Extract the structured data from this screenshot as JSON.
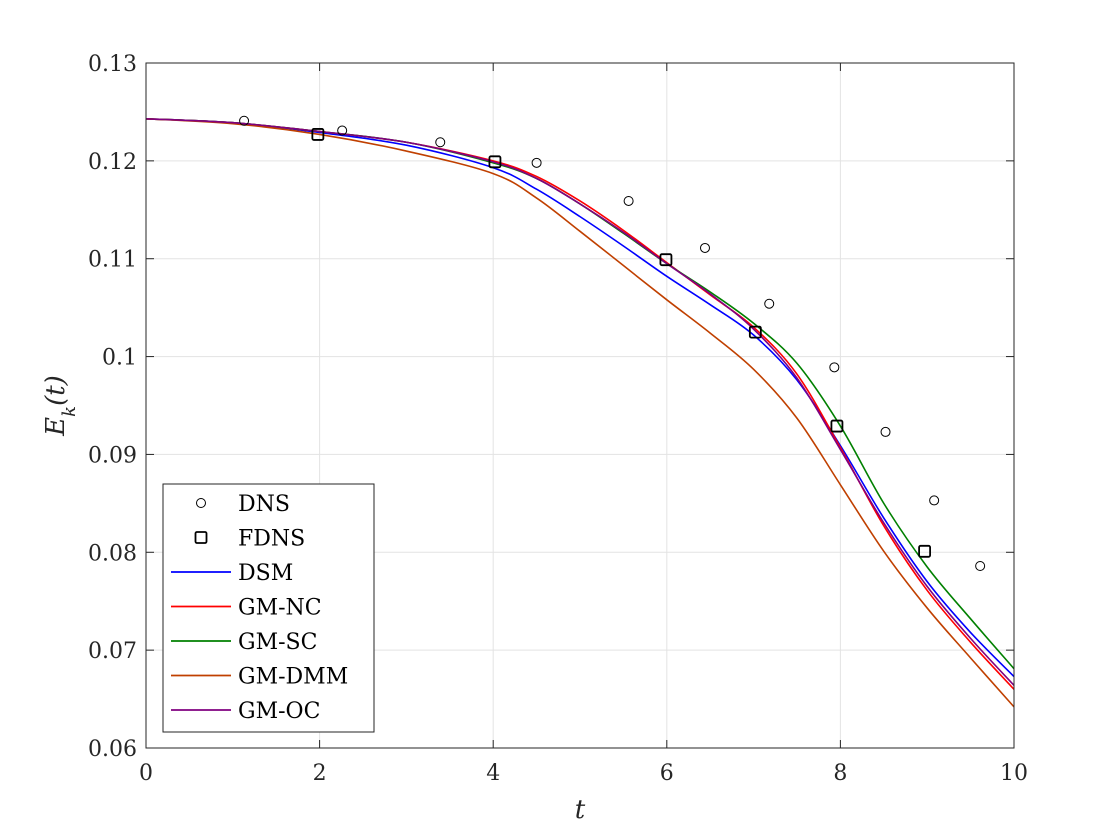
{
  "chart_data": {
    "type": "line",
    "xlabel": "t",
    "ylabel": "E_k(t)",
    "xlim": [
      0,
      10
    ],
    "ylim": [
      0.06,
      0.13
    ],
    "x_ticks": [
      0,
      2,
      4,
      6,
      8,
      10
    ],
    "y_ticks": [
      0.06,
      0.07,
      0.08,
      0.09,
      0.1,
      0.11,
      0.12,
      0.13
    ],
    "x_tick_labels": [
      "0",
      "2",
      "4",
      "6",
      "8",
      "10"
    ],
    "y_tick_labels": [
      "0.06",
      "0.07",
      "0.08",
      "0.09",
      "0.1",
      "0.11",
      "0.12",
      "0.13"
    ],
    "grid": true,
    "legend_position": "bottom-left",
    "series": [
      {
        "name": "DNS",
        "style": "circle-marker",
        "color": "#000000",
        "x": [
          1.13,
          2.26,
          3.39,
          4.5,
          5.56,
          6.44,
          7.18,
          7.93,
          8.52,
          9.08,
          9.61
        ],
        "y": [
          0.1241,
          0.1231,
          0.1219,
          0.1198,
          0.1159,
          0.1111,
          0.1054,
          0.0989,
          0.0923,
          0.0853,
          0.0786
        ]
      },
      {
        "name": "FDNS",
        "style": "square-marker",
        "color": "#000000",
        "x": [
          1.98,
          4.02,
          5.99,
          7.02,
          7.96,
          8.97
        ],
        "y": [
          0.1227,
          0.1199,
          0.1099,
          0.1025,
          0.0929,
          0.0801
        ]
      },
      {
        "name": "DSM",
        "style": "line",
        "color": "#0000ff",
        "x": [
          0,
          1,
          2,
          3,
          4,
          4.5,
          5,
          5.5,
          6,
          6.5,
          7,
          7.5,
          8,
          8.5,
          9,
          9.5,
          10
        ],
        "y": [
          0.1243,
          0.1239,
          0.1229,
          0.1216,
          0.1193,
          0.1171,
          0.1143,
          0.1113,
          0.1082,
          0.1053,
          0.1022,
          0.0976,
          0.0909,
          0.0835,
          0.077,
          0.0718,
          0.0673
        ]
      },
      {
        "name": "GM-NC",
        "style": "line",
        "color": "#ff0000",
        "x": [
          0,
          1,
          2,
          3,
          4,
          4.5,
          5,
          5.5,
          6,
          6.5,
          7,
          7.5,
          8,
          8.5,
          9,
          9.5,
          10
        ],
        "y": [
          0.1243,
          0.1239,
          0.123,
          0.1219,
          0.12,
          0.1184,
          0.1159,
          0.1129,
          0.1096,
          0.1063,
          0.103,
          0.0982,
          0.0907,
          0.0827,
          0.0761,
          0.0708,
          0.066
        ]
      },
      {
        "name": "GM-SC",
        "style": "line",
        "color": "#008000",
        "x": [
          0,
          1,
          2,
          3,
          4,
          4.5,
          5,
          5.5,
          6,
          6.5,
          7,
          7.5,
          8,
          8.5,
          9,
          9.5,
          10
        ],
        "y": [
          0.1243,
          0.1239,
          0.123,
          0.1219,
          0.1198,
          0.1182,
          0.1156,
          0.1126,
          0.1095,
          0.1066,
          0.1034,
          0.0993,
          0.0929,
          0.085,
          0.0785,
          0.0732,
          0.0681
        ]
      },
      {
        "name": "GM-DMM",
        "style": "line",
        "color": "#c04000",
        "x": [
          0,
          1,
          2,
          3,
          4,
          4.5,
          5,
          5.5,
          6,
          6.5,
          7,
          7.5,
          8,
          8.5,
          9,
          9.5,
          10
        ],
        "y": [
          0.1243,
          0.1238,
          0.1227,
          0.121,
          0.1187,
          0.1162,
          0.1128,
          0.1093,
          0.1058,
          0.1024,
          0.0987,
          0.0937,
          0.0869,
          0.0801,
          0.0743,
          0.0692,
          0.0642
        ]
      },
      {
        "name": "GM-OC",
        "style": "line",
        "color": "#800080",
        "x": [
          0,
          1,
          2,
          3,
          4,
          4.5,
          5,
          5.5,
          6,
          6.5,
          7,
          7.5,
          8,
          8.5,
          9,
          9.5,
          10
        ],
        "y": [
          0.1243,
          0.1239,
          0.123,
          0.1219,
          0.1199,
          0.1182,
          0.1156,
          0.1127,
          0.1095,
          0.1064,
          0.1028,
          0.0978,
          0.0905,
          0.083,
          0.0765,
          0.0712,
          0.0664
        ]
      }
    ]
  }
}
